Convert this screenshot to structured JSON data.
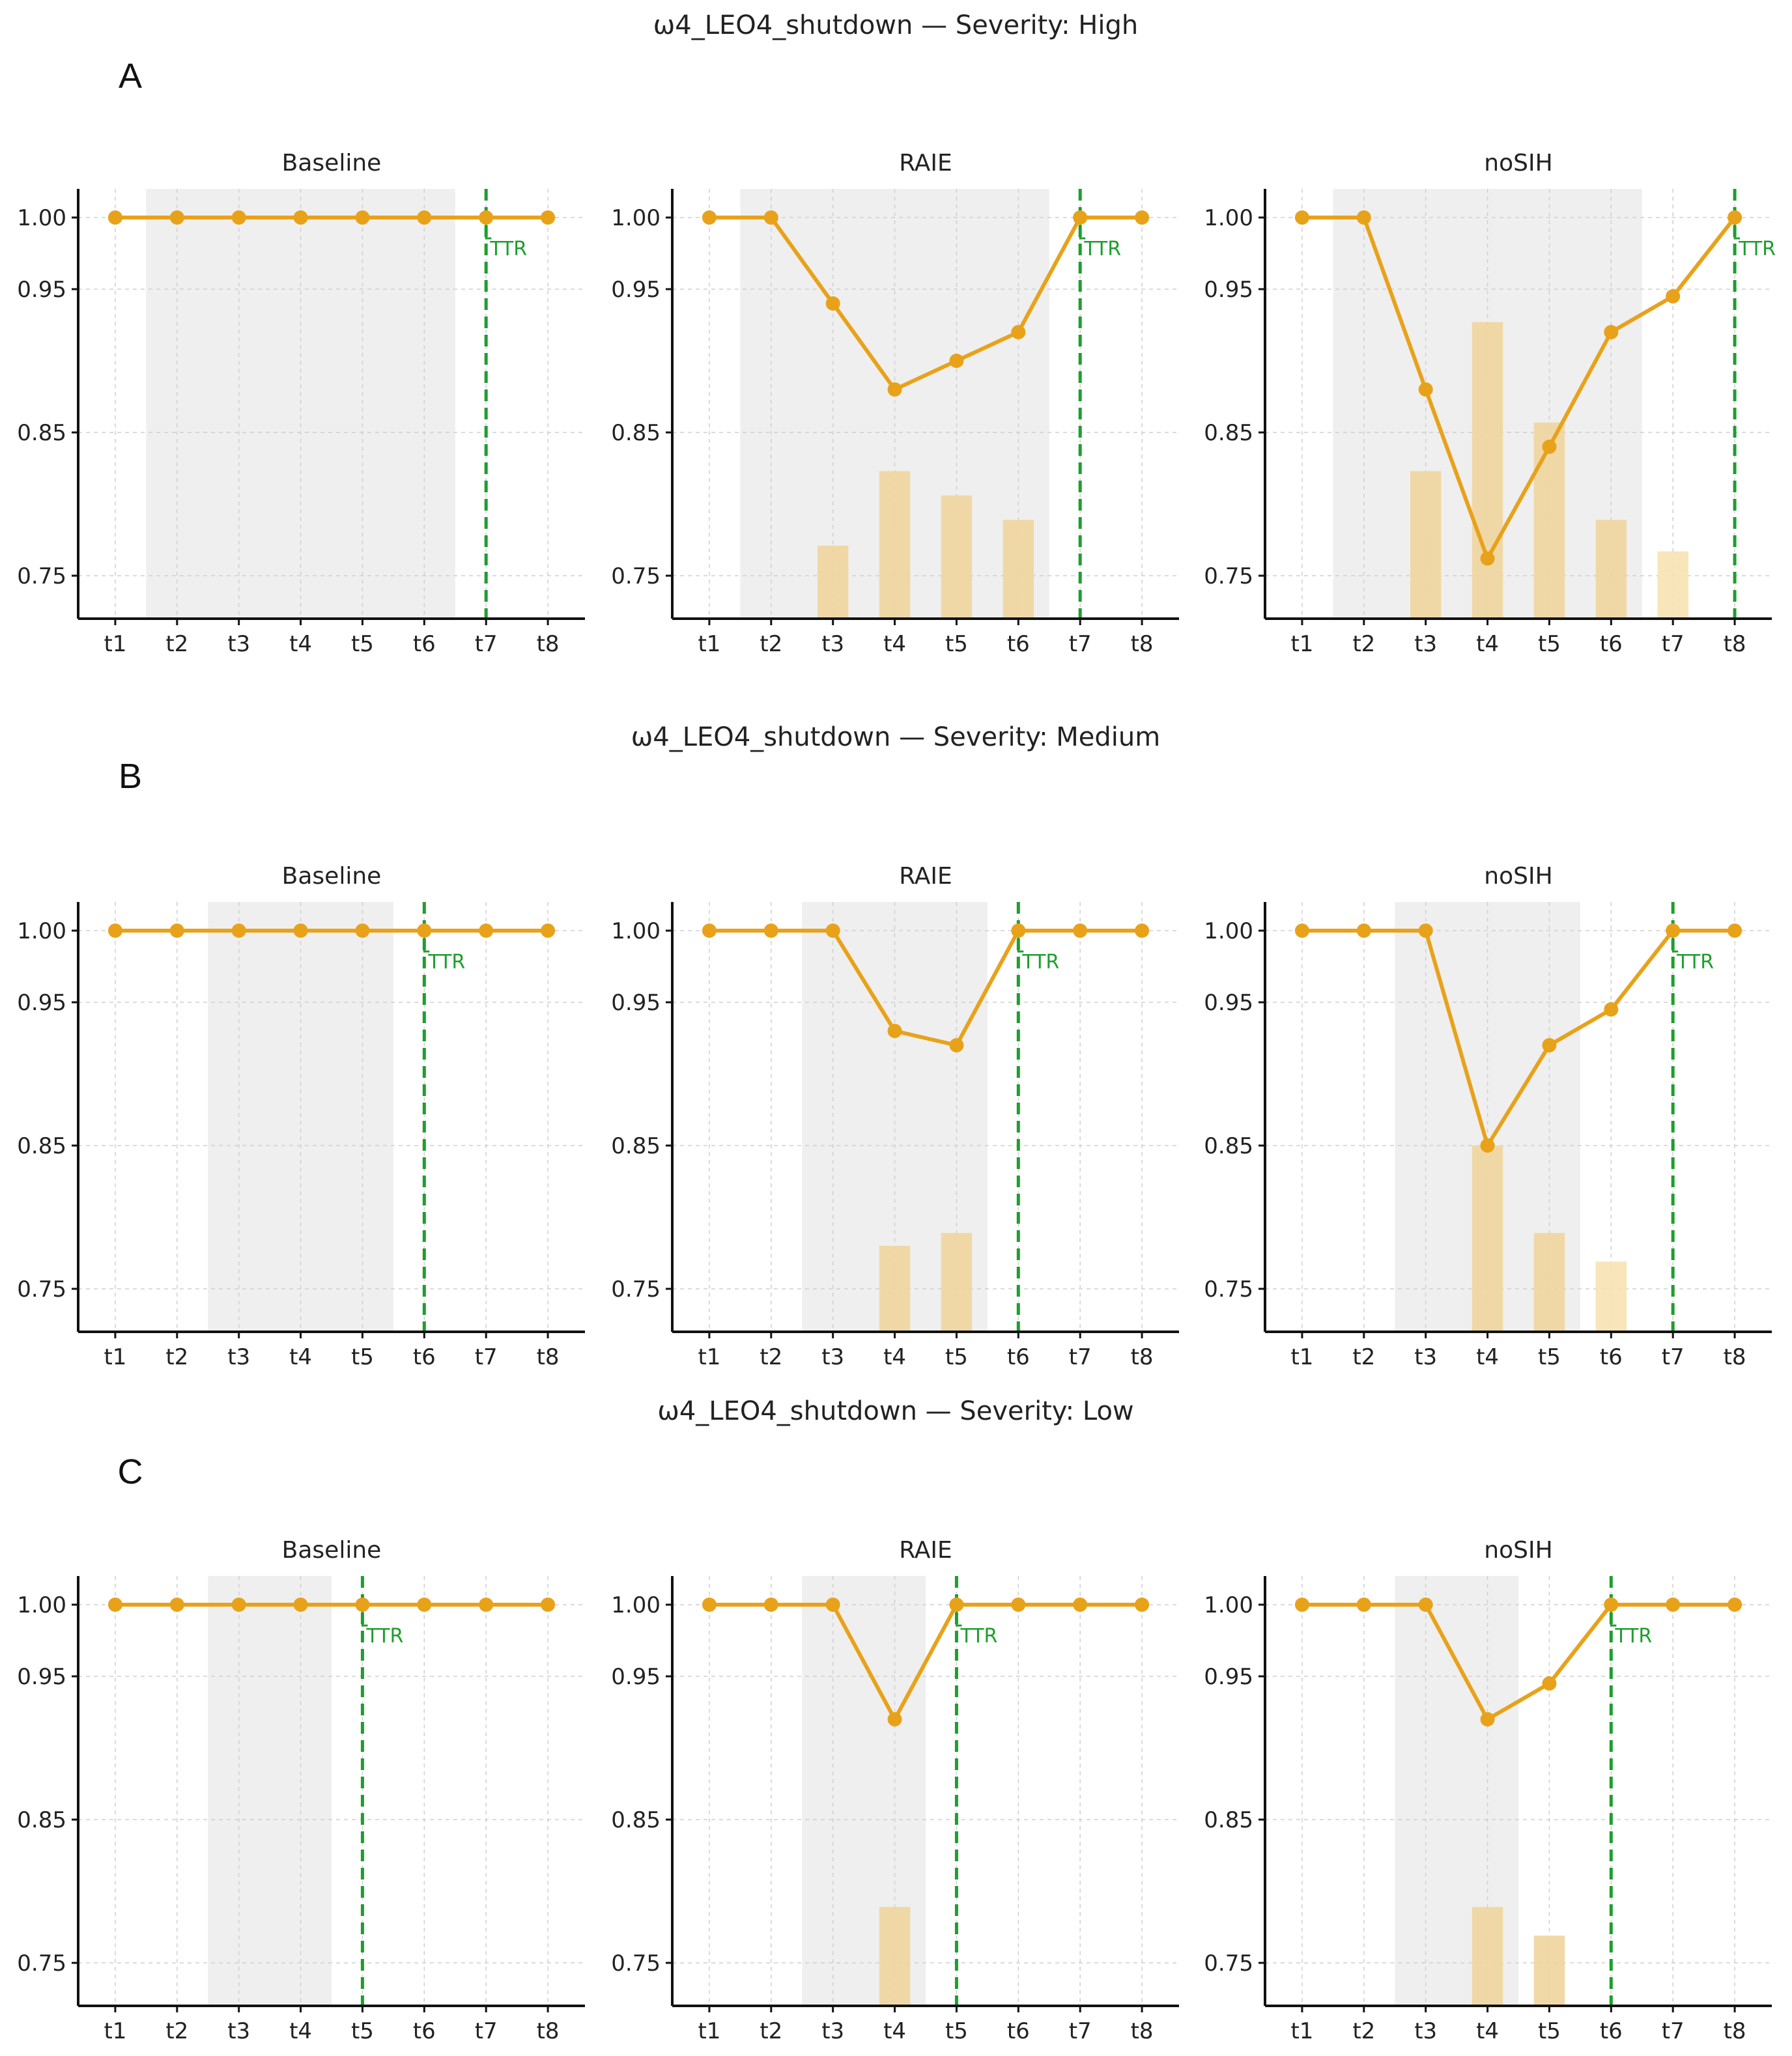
{
  "colors": {
    "line": "#E8A21A",
    "bar": "#EFD59D",
    "bar_light": "#F7E2B3",
    "recovery": "#1E9E2E",
    "shade": "#EFEFEF",
    "grid": "#CFCFCF",
    "axis": "#111111"
  },
  "x_categories": [
    "t1",
    "t2",
    "t3",
    "t4",
    "t5",
    "t6",
    "t7",
    "t8"
  ],
  "y_ticks": [
    "0.75",
    "0.85",
    "0.95",
    "1.00"
  ],
  "ttr_label": "TTR",
  "chart_data": [
    {
      "letter": "A",
      "title": "ω4_LEO4_shutdown — Severity: High",
      "panels": [
        {
          "type": "line",
          "title": "Baseline",
          "categories": [
            "t1",
            "t2",
            "t3",
            "t4",
            "t5",
            "t6",
            "t7",
            "t8"
          ],
          "values": [
            1.0,
            1.0,
            1.0,
            1.0,
            1.0,
            1.0,
            1.0,
            1.0
          ],
          "bars": [
            0,
            0,
            0,
            0,
            0,
            0,
            0,
            0
          ],
          "shade": [
            2,
            6
          ],
          "ttr": 7,
          "ylim": [
            0.72,
            1.02
          ]
        },
        {
          "type": "line",
          "title": "RAIE",
          "categories": [
            "t1",
            "t2",
            "t3",
            "t4",
            "t5",
            "t6",
            "t7",
            "t8"
          ],
          "values": [
            1.0,
            1.0,
            0.94,
            0.88,
            0.9,
            0.92,
            1.0,
            1.0
          ],
          "bars": [
            0,
            0,
            0.771,
            0.823,
            0.806,
            0.789,
            0,
            0
          ],
          "shade": [
            2,
            6
          ],
          "ttr": 7,
          "ylim": [
            0.72,
            1.02
          ]
        },
        {
          "type": "line",
          "title": "noSIH",
          "categories": [
            "t1",
            "t2",
            "t3",
            "t4",
            "t5",
            "t6",
            "t7",
            "t8"
          ],
          "values": [
            1.0,
            1.0,
            0.88,
            0.762,
            0.84,
            0.92,
            0.945,
            1.0
          ],
          "bars": [
            0,
            0,
            0.823,
            0.927,
            0.857,
            0.789,
            0.767,
            0
          ],
          "shade": [
            2,
            6
          ],
          "ttr": 8,
          "ylim": [
            0.72,
            1.02
          ]
        }
      ]
    },
    {
      "letter": "B",
      "title": "ω4_LEO4_shutdown — Severity: Medium",
      "panels": [
        {
          "type": "line",
          "title": "Baseline",
          "categories": [
            "t1",
            "t2",
            "t3",
            "t4",
            "t5",
            "t6",
            "t7",
            "t8"
          ],
          "values": [
            1.0,
            1.0,
            1.0,
            1.0,
            1.0,
            1.0,
            1.0,
            1.0
          ],
          "bars": [
            0,
            0,
            0,
            0,
            0,
            0,
            0,
            0
          ],
          "shade": [
            3,
            5
          ],
          "ttr": 6,
          "ylim": [
            0.72,
            1.02
          ]
        },
        {
          "type": "line",
          "title": "RAIE",
          "categories": [
            "t1",
            "t2",
            "t3",
            "t4",
            "t5",
            "t6",
            "t7",
            "t8"
          ],
          "values": [
            1.0,
            1.0,
            1.0,
            0.93,
            0.92,
            1.0,
            1.0,
            1.0
          ],
          "bars": [
            0,
            0,
            0,
            0.78,
            0.789,
            0,
            0,
            0
          ],
          "shade": [
            3,
            5
          ],
          "ttr": 6,
          "ylim": [
            0.72,
            1.02
          ]
        },
        {
          "type": "line",
          "title": "noSIH",
          "categories": [
            "t1",
            "t2",
            "t3",
            "t4",
            "t5",
            "t6",
            "t7",
            "t8"
          ],
          "values": [
            1.0,
            1.0,
            1.0,
            0.85,
            0.92,
            0.945,
            1.0,
            1.0
          ],
          "bars": [
            0,
            0,
            0,
            0.85,
            0.789,
            0.769,
            0,
            0
          ],
          "shade": [
            3,
            5
          ],
          "ttr": 7,
          "ylim": [
            0.72,
            1.02
          ]
        }
      ]
    },
    {
      "letter": "C",
      "title": "ω4_LEO4_shutdown — Severity: Low",
      "panels": [
        {
          "type": "line",
          "title": "Baseline",
          "categories": [
            "t1",
            "t2",
            "t3",
            "t4",
            "t5",
            "t6",
            "t7",
            "t8"
          ],
          "values": [
            1.0,
            1.0,
            1.0,
            1.0,
            1.0,
            1.0,
            1.0,
            1.0
          ],
          "bars": [
            0,
            0,
            0,
            0,
            0,
            0,
            0,
            0
          ],
          "shade": [
            3,
            4
          ],
          "ttr": 5,
          "ylim": [
            0.72,
            1.02
          ]
        },
        {
          "type": "line",
          "title": "RAIE",
          "categories": [
            "t1",
            "t2",
            "t3",
            "t4",
            "t5",
            "t6",
            "t7",
            "t8"
          ],
          "values": [
            1.0,
            1.0,
            1.0,
            0.92,
            1.0,
            1.0,
            1.0,
            1.0
          ],
          "bars": [
            0,
            0,
            0,
            0.789,
            0,
            0,
            0,
            0
          ],
          "shade": [
            3,
            4
          ],
          "ttr": 5,
          "ylim": [
            0.72,
            1.02
          ]
        },
        {
          "type": "line",
          "title": "noSIH",
          "categories": [
            "t1",
            "t2",
            "t3",
            "t4",
            "t5",
            "t6",
            "t7",
            "t8"
          ],
          "values": [
            1.0,
            1.0,
            1.0,
            0.92,
            0.945,
            1.0,
            1.0,
            1.0
          ],
          "bars": [
            0,
            0,
            0,
            0.789,
            0.769,
            0,
            0,
            0
          ],
          "shade": [
            3,
            4
          ],
          "ttr": 6,
          "ylim": [
            0.72,
            1.02
          ]
        }
      ]
    }
  ]
}
